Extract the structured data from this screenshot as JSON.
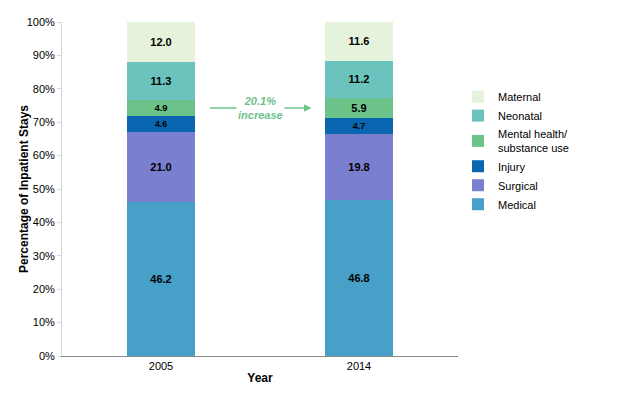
{
  "chart_data": {
    "type": "bar",
    "stacked": true,
    "data_labels": true,
    "legend": "right",
    "grid": false,
    "x_label": "Year",
    "y_label": "Percentage of Inpatient Stays",
    "categories": [
      "2005",
      "2014"
    ],
    "ylim": [
      0,
      100
    ],
    "yticks": [
      {
        "value": 0,
        "label": "0%"
      },
      {
        "value": 10,
        "label": "10%"
      },
      {
        "value": 20,
        "label": "20%"
      },
      {
        "value": 30,
        "label": "30%"
      },
      {
        "value": 40,
        "label": "40%"
      },
      {
        "value": 50,
        "label": "50%"
      },
      {
        "value": 60,
        "label": "60%"
      },
      {
        "value": 70,
        "label": "70%"
      },
      {
        "value": 80,
        "label": "80%"
      },
      {
        "value": 90,
        "label": "90%"
      },
      {
        "value": 100,
        "label": "100%"
      }
    ],
    "series": [
      {
        "name": "Medical",
        "color": "#46a0c8",
        "values": [
          46.2,
          46.8
        ],
        "value_labels": [
          "46.2",
          "46.8"
        ]
      },
      {
        "name": "Surgical",
        "color": "#7b7fcf",
        "values": [
          21.0,
          19.8
        ],
        "value_labels": [
          "21.0",
          "19.8"
        ]
      },
      {
        "name": "Injury",
        "color": "#0a66b0",
        "values": [
          4.6,
          4.7
        ],
        "value_labels": [
          "4.6",
          "4.7"
        ]
      },
      {
        "name": "Mental health/ substance use",
        "color": "#6cc389",
        "values": [
          4.9,
          5.9
        ],
        "value_labels": [
          "4.9",
          "5.9"
        ]
      },
      {
        "name": "Neonatal",
        "color": "#6cc3bd",
        "values": [
          11.3,
          11.2
        ],
        "value_labels": [
          "11.3",
          "11.2"
        ]
      },
      {
        "name": "Maternal",
        "color": "#e5f3dc",
        "values": [
          12.0,
          11.6
        ],
        "value_labels": [
          "12.0",
          "11.6"
        ]
      }
    ],
    "annotations": [
      "20.1% increase"
    ]
  }
}
